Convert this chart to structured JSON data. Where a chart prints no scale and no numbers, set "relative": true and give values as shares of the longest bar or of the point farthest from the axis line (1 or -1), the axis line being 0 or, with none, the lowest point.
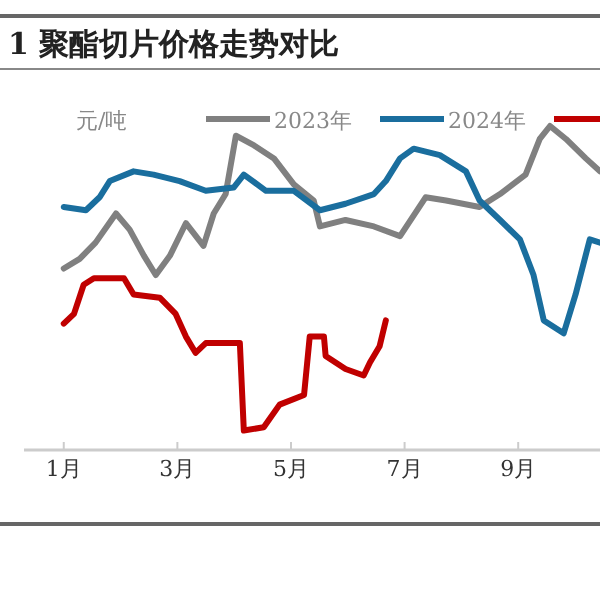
{
  "chart_data": {
    "type": "line",
    "title": "1 聚酯切片价格走势对比",
    "ylabel": "元/吨",
    "relative": true,
    "legend": "top",
    "xlim": [
      0.3,
      10.44
    ],
    "xticks": [
      {
        "value": 1,
        "label": "1月"
      },
      {
        "value": 3,
        "label": "3月"
      },
      {
        "value": 5,
        "label": "5月"
      },
      {
        "value": 7,
        "label": "7月"
      },
      {
        "value": 9,
        "label": "9月"
      }
    ],
    "series": [
      {
        "name": "2023年",
        "color": "#808080",
        "x": [
          1.0,
          1.28,
          1.56,
          1.92,
          2.16,
          2.41,
          2.62,
          2.87,
          3.15,
          3.46,
          3.64,
          3.85,
          4.03,
          4.35,
          4.7,
          5.05,
          5.4,
          5.51,
          5.96,
          6.46,
          6.92,
          7.37,
          7.73,
          8.32,
          8.68,
          9.13,
          9.38,
          9.56,
          9.84,
          10.19,
          10.44
        ],
        "values": [
          0.56,
          0.59,
          0.64,
          0.73,
          0.68,
          0.6,
          0.54,
          0.6,
          0.7,
          0.63,
          0.73,
          0.79,
          0.97,
          0.94,
          0.9,
          0.82,
          0.77,
          0.69,
          0.71,
          0.69,
          0.66,
          0.78,
          0.77,
          0.75,
          0.79,
          0.85,
          0.96,
          1.0,
          0.96,
          0.9,
          0.86
        ]
      },
      {
        "name": "2024年",
        "color": "#1a6e9e",
        "x": [
          1.0,
          1.39,
          1.63,
          1.81,
          2.23,
          2.58,
          3.04,
          3.5,
          3.99,
          4.17,
          4.56,
          5.05,
          5.51,
          5.96,
          6.46,
          6.67,
          6.92,
          7.16,
          7.62,
          8.08,
          8.32,
          8.68,
          9.03,
          9.27,
          9.45,
          9.8,
          10.01,
          10.26,
          10.44
        ],
        "values": [
          0.75,
          0.74,
          0.78,
          0.83,
          0.86,
          0.85,
          0.83,
          0.8,
          0.81,
          0.85,
          0.8,
          0.8,
          0.74,
          0.76,
          0.79,
          0.83,
          0.9,
          0.93,
          0.91,
          0.86,
          0.77,
          0.71,
          0.65,
          0.54,
          0.4,
          0.36,
          0.48,
          0.65,
          0.64
        ]
      },
      {
        "color": "#c00000",
        "x": [
          1.0,
          1.18,
          1.35,
          1.53,
          2.06,
          2.23,
          2.69,
          2.97,
          3.15,
          3.32,
          3.5,
          4.03,
          4.1,
          4.17,
          4.52,
          4.8,
          5.23,
          5.33,
          5.58,
          5.61,
          5.96,
          6.28,
          6.39,
          6.56,
          6.67
        ],
        "values": [
          0.39,
          0.42,
          0.51,
          0.53,
          0.53,
          0.48,
          0.47,
          0.42,
          0.35,
          0.3,
          0.33,
          0.33,
          0.33,
          0.06,
          0.07,
          0.14,
          0.17,
          0.35,
          0.35,
          0.29,
          0.25,
          0.23,
          0.27,
          0.32,
          0.4
        ]
      }
    ]
  }
}
